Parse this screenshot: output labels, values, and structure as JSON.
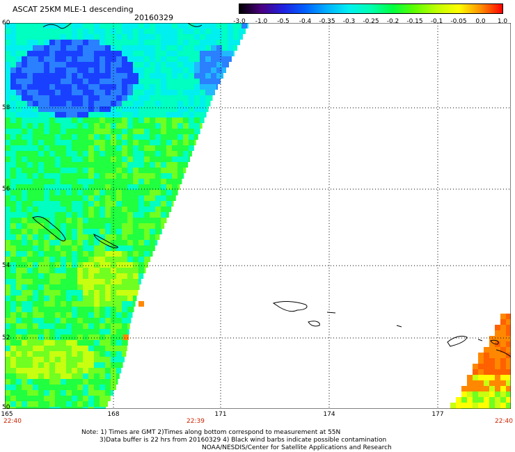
{
  "header": {
    "title": "ASCAT 25KM MLE-1 descending",
    "date": "20160329"
  },
  "colorbar": {
    "labels": [
      "-3.0",
      "-1.0",
      "-0.5",
      "-0.4",
      "-0.35",
      "-0.3",
      "-0.25",
      "-0.2",
      "-0.15",
      "-0.1",
      "-0.05",
      "0.0",
      "1.0"
    ],
    "colors": [
      "#000000",
      "#4a0080",
      "#2020e0",
      "#0060ff",
      "#00b0ff",
      "#00f0f0",
      "#00ffb0",
      "#00ff40",
      "#60ff00",
      "#c0ff00",
      "#ffff00",
      "#ff9000",
      "#ff0000"
    ]
  },
  "map": {
    "latitude_labels": [
      "60",
      "58",
      "56",
      "54",
      "52",
      "50"
    ],
    "longitude_labels": [
      "165",
      "168",
      "171",
      "174",
      "177"
    ],
    "time_labels": [
      "22:40",
      "22:39",
      "22:40"
    ],
    "swath_colors": {
      "deep_blue": "#1a40ff",
      "blue": "#2a80ff",
      "light_blue": "#22b8ff",
      "cyan": "#00f0f0",
      "aqua": "#00ffc0",
      "green": "#20ff40",
      "light_green": "#70ff20",
      "yellow_green": "#c8ff10",
      "yellow": "#ffff00",
      "orange": "#ff8800",
      "orange_dark": "#ff6000"
    }
  },
  "notes": {
    "line1": "Note: 1) Times are GMT 2)Times along bottom correspond to measurement at 55N",
    "line2": "3)Data buffer is 22 hrs from 20160329 4) Black wind barbs indicate possible contamination",
    "line3": "NOAA/NESDIS/Center for Satellite Applications and Research"
  }
}
